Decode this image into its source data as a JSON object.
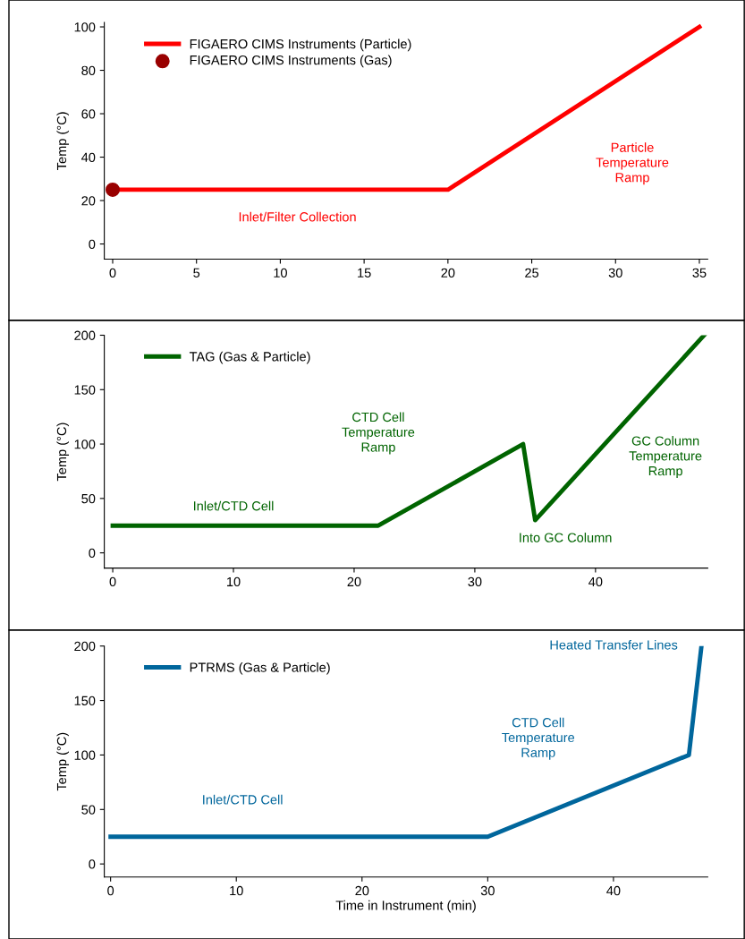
{
  "chart_data": [
    {
      "type": "line",
      "ylabel": "Temp (°C)",
      "xlim": [
        -0.5,
        35.5
      ],
      "ylim": [
        -7,
        102
      ],
      "xticks": [
        0,
        5,
        10,
        15,
        20,
        25,
        30,
        35
      ],
      "yticks": [
        0,
        20,
        40,
        60,
        80,
        100
      ],
      "grid": false,
      "legend": "top left",
      "series": [
        {
          "name": "FIGAERO CIMS Instruments (Particle)",
          "color": "#ff0000",
          "x": [
            0,
            20,
            35
          ],
          "values": [
            25,
            25,
            100
          ]
        },
        {
          "name": "FIGAERO CIMS Instruments (Gas)",
          "type": "scatter",
          "color": "#990000",
          "x": [
            0
          ],
          "values": [
            25
          ]
        }
      ],
      "annotations": [
        "Inlet/Filter Collection",
        "Particle\nTemperature\nRamp"
      ]
    },
    {
      "type": "line",
      "ylabel": "Temp (°C)",
      "xlim": [
        -0.7,
        49.3
      ],
      "ylim": [
        -14,
        200
      ],
      "xticks": [
        0,
        10,
        20,
        30,
        40
      ],
      "yticks": [
        0,
        50,
        100,
        150,
        200
      ],
      "grid": false,
      "legend": "top left",
      "series": [
        {
          "name": "TAG (Gas & Particle)",
          "color": "#006400",
          "x": [
            0,
            22,
            34,
            35,
            49
          ],
          "values": [
            25,
            25,
            100,
            30,
            200
          ]
        }
      ],
      "annotations": [
        "Inlet/CTD Cell",
        "CTD Cell\nTemperature\nRamp",
        "Into GC Column",
        "GC Column\nTemperature\nRamp"
      ]
    },
    {
      "type": "line",
      "ylabel": "Temp (°C)",
      "xlabel": "Time in Instrument (min)",
      "xlim": [
        -0.5,
        47.5
      ],
      "ylim": [
        -12,
        200
      ],
      "xticks": [
        0,
        10,
        20,
        30,
        40
      ],
      "yticks": [
        0,
        50,
        100,
        150,
        200
      ],
      "grid": false,
      "legend": "top left",
      "series": [
        {
          "name": "PTRMS (Gas & Particle)",
          "color": "#00669c",
          "x": [
            0,
            30,
            46,
            47
          ],
          "values": [
            25,
            25,
            100,
            200
          ]
        }
      ],
      "annotations": [
        "Inlet/CTD Cell",
        "CTD Cell\nTemperature\nRamp",
        "Heated Transfer Lines"
      ]
    }
  ]
}
